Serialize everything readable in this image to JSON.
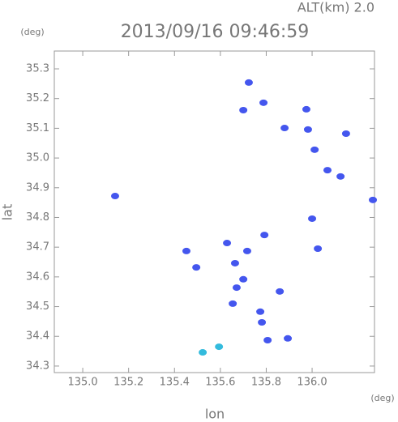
{
  "chart_data": {
    "type": "scatter",
    "title": "2013/09/16 09:46:59",
    "subtitle": "ALT(km) 2.0",
    "x_label": "lon",
    "y_label": "lat",
    "x_unit": "(deg)",
    "y_unit": "(deg)",
    "xlim": [
      134.876,
      136.272
    ],
    "ylim": [
      34.278,
      35.36
    ],
    "xticks": [
      {
        "value": 135,
        "label": "135.0"
      },
      135.2,
      135.4,
      135.6,
      135.8,
      {
        "value": 136,
        "label": "136.0"
      }
    ],
    "yticks": [
      34.3,
      34.4,
      34.5,
      34.6,
      34.7,
      34.8,
      34.9,
      {
        "value": 35,
        "label": "35.0"
      },
      35.1,
      35.2,
      35.3
    ],
    "series": [
      {
        "color": "#4456ee",
        "x": [
          135.724,
          135.788,
          135.7,
          135.88,
          135.975,
          135.982,
          136.011,
          136.067,
          136.148,
          136.124,
          136.265,
          135.141,
          136.0,
          135.792,
          135.452,
          135.495,
          135.664,
          135.629,
          135.717,
          135.671,
          135.654,
          135.7,
          135.774,
          135.781,
          135.859,
          136.025,
          135.894,
          135.806
        ],
        "values": [
          35.254,
          35.186,
          35.161,
          35.101,
          35.164,
          35.096,
          35.028,
          34.959,
          35.082,
          34.938,
          34.859,
          34.872,
          34.796,
          34.741,
          34.687,
          34.632,
          34.646,
          34.714,
          34.687,
          34.564,
          34.51,
          34.592,
          34.483,
          34.447,
          34.551,
          34.695,
          34.393,
          34.387
        ]
      },
      {
        "color": "#33bbdd",
        "x": [
          135.523,
          135.594
        ],
        "values": [
          34.346,
          34.365
        ]
      }
    ]
  }
}
